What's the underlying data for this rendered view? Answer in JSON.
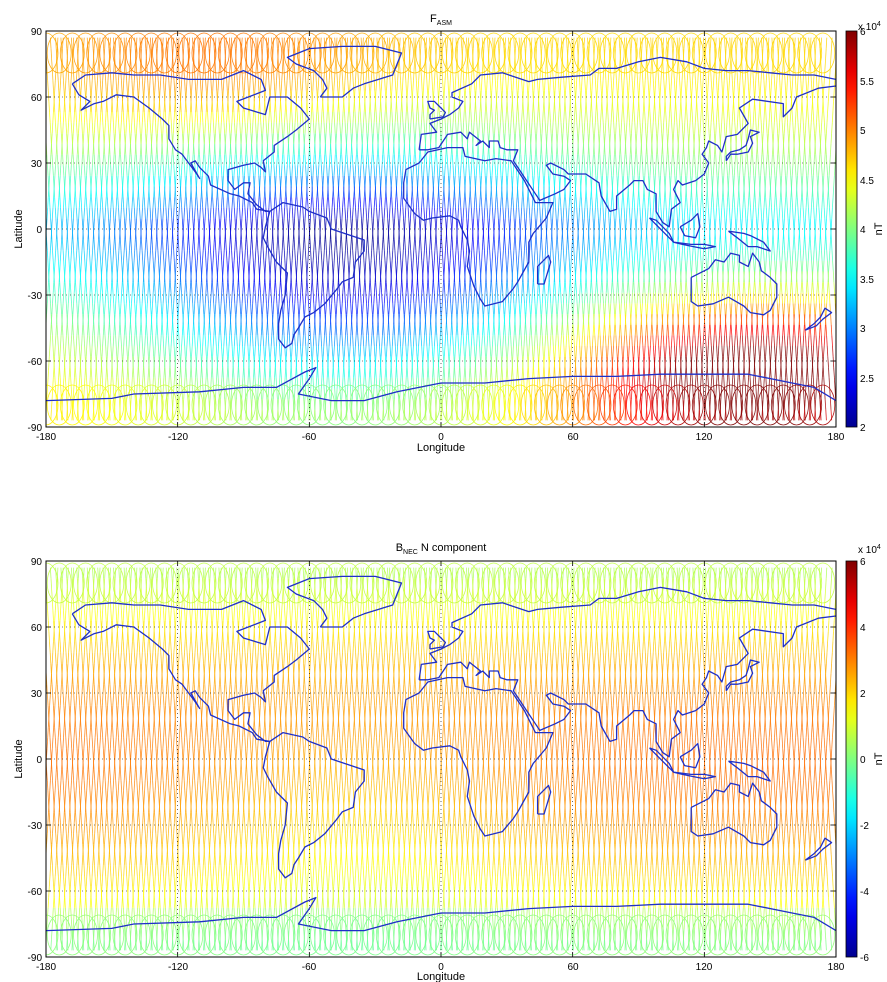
{
  "colormap_stops": [
    "#00008f",
    "#0000ff",
    "#0080ff",
    "#00ffff",
    "#80ff80",
    "#ffff00",
    "#ff8000",
    "#ff0000",
    "#800000"
  ],
  "coastline_color": "#1f2fc8",
  "grid_color": "#000000",
  "panels": [
    {
      "title_main": "F",
      "title_sub": "ASM",
      "title_rest": "",
      "xlabel": "Longitude",
      "ylabel": "Latitude",
      "x_ticks": [
        "-180",
        "-120",
        "-60",
        "0",
        "60",
        "120",
        "180"
      ],
      "y_ticks": [
        "90",
        "60",
        "30",
        "0",
        "-30",
        "-60",
        "-90"
      ],
      "colorbar": {
        "label": "nT",
        "exponent_base": "x 10",
        "exponent_power": "4",
        "ticks": [
          "6",
          "5.5",
          "5",
          "4.5",
          "4",
          "3.5",
          "3",
          "2.5",
          "2"
        ]
      }
    },
    {
      "title_main": "B",
      "title_sub": "NEC",
      "title_rest": " N component",
      "xlabel": "Longitude",
      "ylabel": "Latitude",
      "x_ticks": [
        "-180",
        "-120",
        "-60",
        "0",
        "60",
        "120",
        "180"
      ],
      "y_ticks": [
        "90",
        "60",
        "30",
        "0",
        "-30",
        "-60",
        "-90"
      ],
      "colorbar": {
        "label": "nT",
        "exponent_base": "x 10",
        "exponent_power": "4",
        "ticks": [
          "6",
          "4",
          "2",
          "0",
          "-2",
          "-4",
          "-6"
        ]
      }
    }
  ],
  "chart_data": [
    {
      "type": "map",
      "title": "F_ASM",
      "xlabel": "Longitude",
      "ylabel": "Latitude",
      "xlim": [
        -180,
        180
      ],
      "ylim": [
        -90,
        90
      ],
      "grid": true,
      "colorbar": {
        "label": "nT",
        "scale": "x 10^4",
        "range": [
          2,
          6
        ]
      },
      "field": "total field intensity along satellite tracks; ~2.2e4 nT near South Atlantic, ~5.8e4 nT near south polar region south of Australia"
    },
    {
      "type": "map",
      "title": "B_NEC N component",
      "xlabel": "Longitude",
      "ylabel": "Latitude",
      "xlim": [
        -180,
        180
      ],
      "ylim": [
        -90,
        90
      ],
      "grid": true,
      "colorbar": {
        "label": "nT",
        "scale": "x 10^4",
        "range": [
          -6,
          6
        ]
      },
      "field": "north component along satellite tracks; ~+3e4 nT near equator, ~0 near poles"
    }
  ]
}
